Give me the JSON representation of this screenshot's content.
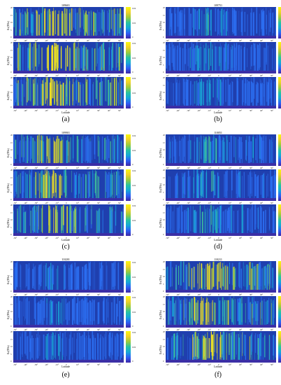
{
  "figure": {
    "panels": [
      {
        "id": "a",
        "title": "109601",
        "caption": "(a)",
        "intensity": 0.95,
        "cbar_max": [
          "0.04",
          "0.02",
          "0"
        ]
      },
      {
        "id": "b",
        "title": "109751",
        "caption": "(b)",
        "intensity": 0.35,
        "cbar_max": [
          "0.04",
          "0.02",
          "0"
        ]
      },
      {
        "id": "c",
        "title": "109901",
        "caption": "(c)",
        "intensity": 0.75,
        "cbar_max": [
          "0.04",
          "0.02",
          "0"
        ]
      },
      {
        "id": "d",
        "title": "110051",
        "caption": "(d)",
        "intensity": 0.4,
        "cbar_max": [
          "0.04",
          "0.02",
          "0"
        ]
      },
      {
        "id": "e",
        "title": "110201",
        "caption": "(e)",
        "intensity": 0.3,
        "cbar_max": [
          "0.04",
          "0.02",
          "0"
        ]
      },
      {
        "id": "f",
        "title": "110211",
        "caption": "(f)",
        "intensity": 0.85,
        "cbar_max": [
          "0.04",
          "0.02",
          "0"
        ]
      }
    ],
    "row_labels": [
      "Ex(THz)",
      "Ey(THz)",
      "Ez(THz)"
    ],
    "xlabel": "Latitude",
    "xticks": [
      "-50°",
      "-40°",
      "-30°",
      "-20°",
      "-10°",
      "0",
      "10°",
      "20°",
      "30°",
      "40°",
      "50°"
    ],
    "yticks": [
      "20",
      "15",
      "10",
      "5",
      "0"
    ]
  }
}
